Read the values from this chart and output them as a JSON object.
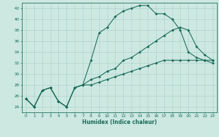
{
  "xlabel": "Humidex (Indice chaleur)",
  "background_color": "#cce8e0",
  "grid_color": "#aacccc",
  "line_color": "#1a6b5a",
  "x_ticks": [
    0,
    1,
    2,
    3,
    4,
    5,
    6,
    7,
    8,
    9,
    10,
    11,
    12,
    13,
    14,
    15,
    16,
    17,
    18,
    19,
    20,
    21,
    22,
    23
  ],
  "y_ticks": [
    24,
    26,
    28,
    30,
    32,
    34,
    36,
    38,
    40,
    42
  ],
  "ylim": [
    23.0,
    43.0
  ],
  "xlim": [
    -0.5,
    23.5
  ],
  "curve1_x": [
    0,
    1,
    2,
    3,
    4,
    5,
    6,
    7,
    8,
    9,
    10,
    11,
    12,
    13,
    14,
    15,
    16,
    17,
    18,
    19,
    20,
    21,
    22,
    23
  ],
  "curve1_y": [
    25.5,
    24.0,
    27.0,
    27.5,
    25.0,
    24.0,
    27.5,
    28.0,
    32.5,
    37.5,
    38.5,
    40.5,
    41.5,
    42.0,
    42.5,
    42.5,
    41.0,
    41.0,
    40.0,
    38.0,
    34.0,
    33.0,
    32.5,
    32.0
  ],
  "curve2_x": [
    0,
    1,
    2,
    3,
    4,
    5,
    6,
    7,
    8,
    9,
    10,
    11,
    12,
    13,
    14,
    15,
    16,
    17,
    18,
    19,
    20,
    21,
    22,
    23
  ],
  "curve2_y": [
    25.5,
    24.0,
    27.0,
    27.5,
    25.0,
    24.0,
    27.5,
    28.0,
    29.0,
    29.5,
    30.5,
    31.0,
    32.5,
    33.0,
    34.0,
    35.0,
    36.0,
    37.0,
    38.0,
    38.5,
    38.0,
    35.0,
    33.5,
    32.5
  ],
  "curve3_x": [
    0,
    1,
    2,
    3,
    4,
    5,
    6,
    7,
    8,
    9,
    10,
    11,
    12,
    13,
    14,
    15,
    16,
    17,
    18,
    19,
    20,
    21,
    22,
    23
  ],
  "curve3_y": [
    25.5,
    24.0,
    27.0,
    27.5,
    25.0,
    24.0,
    27.5,
    28.0,
    28.0,
    28.5,
    29.0,
    29.5,
    30.0,
    30.5,
    31.0,
    31.5,
    32.0,
    32.5,
    32.5,
    32.5,
    32.5,
    32.5,
    32.5,
    32.5
  ],
  "tick_fontsize": 4.5,
  "xlabel_fontsize": 5.5,
  "marker_size": 1.8,
  "line_width": 0.8
}
